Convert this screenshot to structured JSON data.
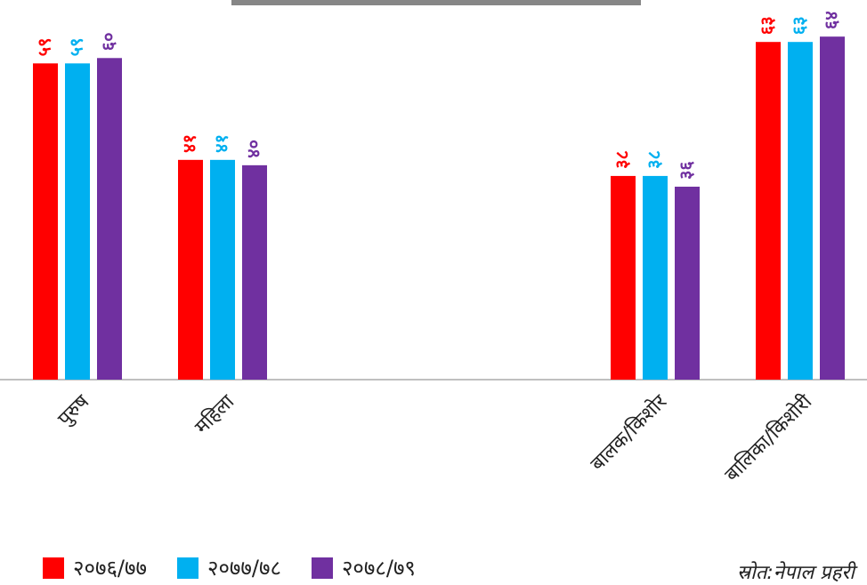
{
  "chart_data": {
    "type": "bar",
    "title": "",
    "xlabel": "",
    "ylabel": "",
    "ylim": [
      0,
      70
    ],
    "grid": false,
    "legend_position": "bottom-left",
    "categories": [
      "पुरुष",
      "महिला",
      "",
      "बालक/किशोर",
      "बालिका/किशोरी"
    ],
    "series": [
      {
        "name": "२०७६/७७",
        "color": "#ff0000",
        "values": [
          59,
          41,
          null,
          38,
          63
        ],
        "labels": [
          "५९",
          "४१",
          "",
          "३८",
          "६३"
        ]
      },
      {
        "name": "२०७७/७८",
        "color": "#00b0f0",
        "values": [
          59,
          41,
          null,
          38,
          63
        ],
        "labels": [
          "५९",
          "४१",
          "",
          "३८",
          "६३"
        ]
      },
      {
        "name": "२०७८/७९",
        "color": "#7030a0",
        "values": [
          60,
          40,
          null,
          36,
          64
        ],
        "labels": [
          "६०",
          "४०",
          "",
          "३६",
          "६४"
        ]
      }
    ]
  },
  "source_text": "स्रोत:नेपाल प्रहरी"
}
